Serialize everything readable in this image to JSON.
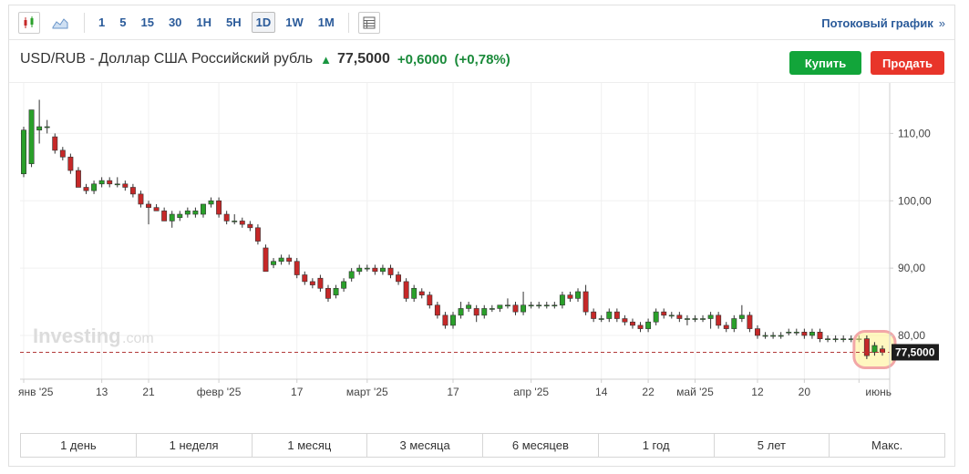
{
  "toolbar": {
    "candle_icon": "candlestick-icon",
    "area_icon": "area-chart-icon",
    "intervals": [
      {
        "label": "1",
        "active": false
      },
      {
        "label": "5",
        "active": false
      },
      {
        "label": "15",
        "active": false
      },
      {
        "label": "30",
        "active": false
      },
      {
        "label": "1H",
        "active": false
      },
      {
        "label": "5H",
        "active": false
      },
      {
        "label": "1D",
        "active": true
      },
      {
        "label": "1W",
        "active": false
      },
      {
        "label": "1M",
        "active": false
      }
    ],
    "table_icon": "table-icon",
    "stream_label": "Потоковый график",
    "stream_chevron": "»"
  },
  "instrument": {
    "name": "USD/RUB - Доллар США Российский рубль",
    "price": "77,5000",
    "change": "+0,6000",
    "change_pct": "(+0,78%)",
    "up_color": "#1a9641"
  },
  "actions": {
    "buy": "Купить",
    "sell": "Продать"
  },
  "watermark": {
    "main": "Investing",
    "suffix": ".com"
  },
  "periods": [
    "1 день",
    "1 неделя",
    "1 месяц",
    "3 месяца",
    "6 месяцев",
    "1 год",
    "5 лет",
    "Макс."
  ],
  "chart_data": {
    "type": "candlestick",
    "ylim": [
      73.5,
      117.5
    ],
    "yticks": [
      {
        "value": 110,
        "label": "110,00"
      },
      {
        "value": 100,
        "label": "100,00"
      },
      {
        "value": 90,
        "label": "90,00"
      },
      {
        "value": 80,
        "label": "80,00"
      }
    ],
    "current": {
      "value": 77.5,
      "label": "77,5000"
    },
    "up_color": "#2aa02a",
    "down_color": "#c62828",
    "xticks": [
      {
        "index": 0,
        "label": "янв '25"
      },
      {
        "index": 10,
        "label": "13"
      },
      {
        "index": 16,
        "label": "21"
      },
      {
        "index": 25,
        "label": "февр '25"
      },
      {
        "index": 35,
        "label": "17"
      },
      {
        "index": 44,
        "label": "март '25"
      },
      {
        "index": 55,
        "label": "17"
      },
      {
        "index": 65,
        "label": "апр '25"
      },
      {
        "index": 74,
        "label": "14"
      },
      {
        "index": 80,
        "label": "22"
      },
      {
        "index": 86,
        "label": "май '25"
      },
      {
        "index": 94,
        "label": "12"
      },
      {
        "index": 100,
        "label": "20"
      },
      {
        "index": 107,
        "label": "июнь"
      }
    ],
    "candles": [
      [
        104,
        111,
        103.5,
        110.5
      ],
      [
        105.5,
        113.5,
        105,
        113.5
      ],
      [
        110.5,
        115,
        108.5,
        111
      ],
      [
        111,
        112,
        110,
        111
      ],
      [
        109.5,
        110,
        107,
        107.5
      ],
      [
        107.5,
        108,
        106,
        106.5
      ],
      [
        106.5,
        107,
        104,
        104.5
      ],
      [
        104.5,
        105,
        102,
        102
      ],
      [
        102,
        102.5,
        101,
        101.5
      ],
      [
        101.5,
        103,
        101,
        102.5
      ],
      [
        102.5,
        103.5,
        102,
        103
      ],
      [
        103,
        103.5,
        102,
        102.5
      ],
      [
        102.5,
        103.5,
        102,
        102.5
      ],
      [
        102.5,
        103,
        101.5,
        102
      ],
      [
        102,
        102.5,
        100.5,
        101
      ],
      [
        101,
        101.5,
        99,
        99.5
      ],
      [
        99.5,
        100,
        96.5,
        99
      ],
      [
        99,
        99.5,
        98.5,
        98.5
      ],
      [
        98.5,
        99,
        97,
        97
      ],
      [
        97,
        98.5,
        96,
        98
      ],
      [
        97.5,
        98.5,
        97,
        98
      ],
      [
        98,
        99,
        97.5,
        98.5
      ],
      [
        98,
        99,
        97.5,
        98.5
      ],
      [
        98,
        99.5,
        97.5,
        99.5
      ],
      [
        99.5,
        100.5,
        99,
        100
      ],
      [
        100,
        100.5,
        97.5,
        98
      ],
      [
        98,
        98.5,
        96.5,
        97
      ],
      [
        97,
        98,
        96.5,
        97
      ],
      [
        97,
        97.5,
        96,
        96.5
      ],
      [
        96.5,
        97,
        95.5,
        96
      ],
      [
        96,
        96.5,
        93.5,
        94
      ],
      [
        93,
        93.5,
        89.5,
        89.5
      ],
      [
        90.5,
        91.5,
        90,
        91
      ],
      [
        91,
        92,
        90.5,
        91.5
      ],
      [
        91.5,
        92,
        90.5,
        91
      ],
      [
        91,
        91.5,
        88.5,
        89
      ],
      [
        89,
        89.5,
        87.5,
        88
      ],
      [
        88,
        88.5,
        87,
        87.5
      ],
      [
        88.5,
        89,
        86.5,
        87
      ],
      [
        87,
        87.5,
        85,
        85.5
      ],
      [
        86,
        87.5,
        85.5,
        87
      ],
      [
        87,
        88.5,
        86.5,
        88
      ],
      [
        88.5,
        90,
        88,
        89.5
      ],
      [
        89.5,
        90.5,
        89,
        90
      ],
      [
        90,
        90.5,
        89.5,
        90
      ],
      [
        90,
        90.5,
        89,
        89.5
      ],
      [
        89.5,
        90.5,
        89,
        90
      ],
      [
        90,
        90.5,
        88.5,
        89
      ],
      [
        89,
        89.5,
        87.5,
        88
      ],
      [
        88,
        88.5,
        85,
        85.5
      ],
      [
        85.5,
        87.5,
        85,
        87
      ],
      [
        86.5,
        87,
        85.5,
        86
      ],
      [
        86,
        86.5,
        84,
        84.5
      ],
      [
        84.5,
        85,
        82.5,
        83
      ],
      [
        83,
        83.5,
        81,
        81.5
      ],
      [
        81.5,
        83.5,
        81,
        83
      ],
      [
        83,
        85,
        82.5,
        84
      ],
      [
        84,
        85,
        83.5,
        84.5
      ],
      [
        84,
        84.5,
        82,
        83
      ],
      [
        83,
        84.5,
        82.5,
        84
      ],
      [
        84,
        84.5,
        83.5,
        84
      ],
      [
        84,
        84.5,
        83.5,
        84.5
      ],
      [
        84.5,
        85.5,
        84,
        84.5
      ],
      [
        84.5,
        85,
        83,
        83.5
      ],
      [
        83.5,
        86.5,
        83,
        84.5
      ],
      [
        84.5,
        85,
        84,
        84.5
      ],
      [
        84.5,
        85,
        84,
        84.5
      ],
      [
        84.5,
        85,
        84,
        84.5
      ],
      [
        84.5,
        85,
        84,
        84.5
      ],
      [
        84.5,
        86.5,
        84,
        86
      ],
      [
        86,
        86.5,
        85,
        85.5
      ],
      [
        85.5,
        87,
        85,
        86.5
      ],
      [
        86.5,
        87.5,
        83,
        83.5
      ],
      [
        83.5,
        84,
        82,
        82.5
      ],
      [
        82.5,
        83,
        82,
        82.5
      ],
      [
        82.5,
        84,
        82,
        83.5
      ],
      [
        83.5,
        84,
        82,
        82.5
      ],
      [
        82.5,
        83,
        81.5,
        82
      ],
      [
        82,
        82.5,
        81,
        81.5
      ],
      [
        81.5,
        82,
        80.5,
        81
      ],
      [
        81,
        82.5,
        80.5,
        82
      ],
      [
        82,
        84,
        81.5,
        83.5
      ],
      [
        83.5,
        84,
        82.5,
        83
      ],
      [
        83,
        83.5,
        82.5,
        83
      ],
      [
        83,
        83.5,
        82,
        82.5
      ],
      [
        82.5,
        83,
        81.5,
        82.5
      ],
      [
        82.5,
        83,
        82,
        82.5
      ],
      [
        82.5,
        83,
        82,
        82.5
      ],
      [
        82.5,
        83.5,
        81,
        83
      ],
      [
        83,
        83.5,
        81,
        81.5
      ],
      [
        81.5,
        82,
        80.5,
        81
      ],
      [
        81,
        83,
        80.5,
        82.5
      ],
      [
        82.5,
        84.5,
        82,
        83
      ],
      [
        83,
        83.5,
        80.5,
        81
      ],
      [
        81,
        81.5,
        79.5,
        80
      ],
      [
        80,
        80.5,
        79.5,
        80
      ],
      [
        80,
        80.5,
        79.5,
        80
      ],
      [
        80,
        80.5,
        79.5,
        80
      ],
      [
        80.5,
        81,
        80,
        80.5
      ],
      [
        80.5,
        81,
        80,
        80.5
      ],
      [
        80.5,
        81,
        79.5,
        80
      ],
      [
        80,
        81,
        79.5,
        80.5
      ],
      [
        80.5,
        81,
        79,
        79.5
      ],
      [
        79.5,
        80,
        79,
        79.5
      ],
      [
        79.5,
        80,
        79,
        79.5
      ],
      [
        79.5,
        80,
        79,
        79.5
      ],
      [
        79.5,
        80,
        79,
        79.5
      ],
      [
        79.5,
        80,
        79,
        79.5
      ],
      [
        79.5,
        80,
        76.5,
        77
      ],
      [
        77.5,
        79,
        77,
        78.5
      ],
      [
        78,
        78.5,
        77,
        77.5
      ]
    ]
  }
}
